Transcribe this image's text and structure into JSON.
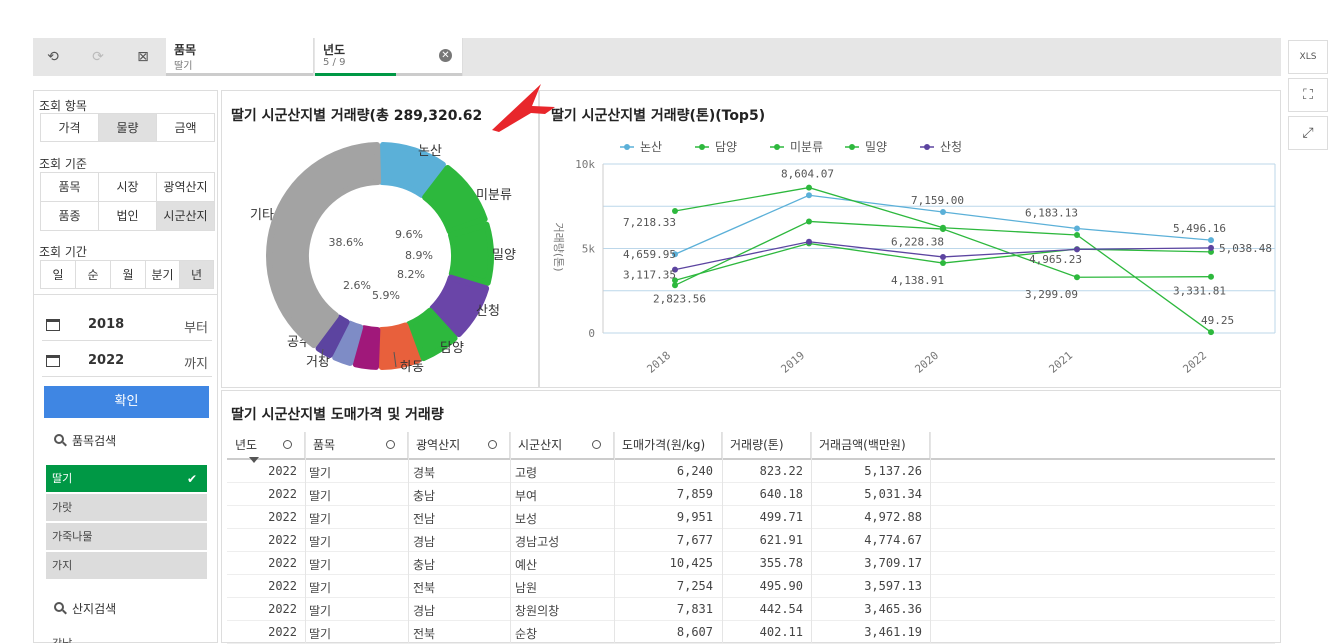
{
  "selections": [
    {
      "field": "품목",
      "value": "딸기",
      "fill": 1.0,
      "active": false
    },
    {
      "field": "년도",
      "value": "5 / 9",
      "fill": 0.55,
      "active": true
    }
  ],
  "right_toolbar": {
    "export_label": "XLS"
  },
  "left": {
    "query_item_label": "조회 항목",
    "query_items": [
      "가격",
      "물량",
      "금액"
    ],
    "query_item_selected": 1,
    "query_basis_label": "조회 기준",
    "query_basis": [
      "품목",
      "시장",
      "광역산지",
      "품종",
      "법인",
      "시군산지"
    ],
    "query_basis_selected": 5,
    "query_period_label": "조회 기간",
    "query_period": [
      "일",
      "순",
      "월",
      "분기",
      "년"
    ],
    "query_period_selected": 4,
    "date_from": "2018",
    "date_from_suffix": "부터",
    "date_to": "2022",
    "date_to_suffix": "까지",
    "confirm_label": "확인",
    "item_search_label": "품목검색",
    "items": [
      "딸기",
      "가랏",
      "가죽나물",
      "가지"
    ],
    "origin_search_label": "산지검색",
    "origin_partial": "강남"
  },
  "donut": {
    "title": "딸기 시군산지별 거래량(총 289,320.62",
    "chart_data": {
      "type": "pie",
      "slices": [
        {
          "label": "논산",
          "pct": 9.6,
          "pct_label": "",
          "color": "#5bb0d8"
        },
        {
          "label": "미분류",
          "pct": 9.6,
          "pct_label": "9.6%",
          "color": "#2db83d"
        },
        {
          "label": "밀양",
          "pct": 8.9,
          "pct_label": "8.9%",
          "color": "#2db83d"
        },
        {
          "label": "산청",
          "pct": 8.2,
          "pct_label": "8.2%",
          "color": "#6a45a8"
        },
        {
          "label": "담양",
          "pct": 5.9,
          "pct_label": "5.9%",
          "color": "#2db83d"
        },
        {
          "label": "하동",
          "pct": 5.9,
          "pct_label": "",
          "color": "#e8603c"
        },
        {
          "label": "",
          "pct": 3.6,
          "pct_label": "",
          "color": "#a0187a"
        },
        {
          "label": "거창",
          "pct": 3.0,
          "pct_label": "",
          "color": "#7e8cc6"
        },
        {
          "label": "공주",
          "pct": 2.6,
          "pct_label": "2.6%",
          "color": "#5c44a0"
        },
        {
          "label": "기타",
          "pct": 38.6,
          "pct_label": "38.6%",
          "color": "#a3a3a3"
        }
      ]
    }
  },
  "line": {
    "title": "딸기 시군산지별 거래량(톤)(Top5)",
    "chart_data": {
      "type": "line",
      "x": [
        "2018",
        "2019",
        "2020",
        "2021",
        "2022"
      ],
      "ylabel": "거래량(톤)",
      "ylim": [
        0,
        10000
      ],
      "y_ticks": [
        "0",
        "5k",
        "10k"
      ],
      "legend_position": "top-left",
      "grid": true,
      "series": [
        {
          "name": "논산",
          "color": "#5bb0d8",
          "values": [
            4659.95,
            8150,
            7159.0,
            6183.13,
            5496.16
          ],
          "labels": [
            "4,659.95",
            "",
            "7,159.00",
            "6,183.13",
            "5,496.16"
          ]
        },
        {
          "name": "담양",
          "color": "#2db83d",
          "values": [
            7218.33,
            8604.07,
            6228.38,
            5800,
            49.25
          ],
          "labels": [
            "7,218.33",
            "8,604.07",
            "6,228.38",
            "",
            "49.25"
          ]
        },
        {
          "name": "미분류",
          "color": "#2db83d",
          "values": [
            2823.56,
            6600,
            6150,
            3299.09,
            3331.81
          ],
          "labels": [
            "2,823.56",
            "",
            "",
            "3,299.09",
            "3,331.81"
          ]
        },
        {
          "name": "밀양",
          "color": "#2db83d",
          "values": [
            3117.35,
            5300,
            4138.91,
            4965.23,
            4800
          ],
          "labels": [
            "3,117.35",
            "",
            "4,138.91",
            "4,965.23",
            ""
          ]
        },
        {
          "name": "산청",
          "color": "#5c44a0",
          "values": [
            3750,
            5400,
            4500,
            4950,
            5038.48
          ],
          "labels": [
            "",
            "",
            "",
            "",
            "5,038.48"
          ]
        }
      ]
    }
  },
  "table": {
    "title": "딸기 시군산지별 도매가격 및 거래량",
    "headers": [
      "년도",
      "품목",
      "광역산지",
      "시군산지",
      "도매가격(원/kg)",
      "거래량(톤)",
      "거래금액(백만원)"
    ],
    "rows": [
      [
        "2022",
        "딸기",
        "경북",
        "고령",
        "6,240",
        "823.22",
        "5,137.26"
      ],
      [
        "2022",
        "딸기",
        "충남",
        "부여",
        "7,859",
        "640.18",
        "5,031.34"
      ],
      [
        "2022",
        "딸기",
        "전남",
        "보성",
        "9,951",
        "499.71",
        "4,972.88"
      ],
      [
        "2022",
        "딸기",
        "경남",
        "경남고성",
        "7,677",
        "621.91",
        "4,774.67"
      ],
      [
        "2022",
        "딸기",
        "충남",
        "예산",
        "10,425",
        "355.78",
        "3,709.17"
      ],
      [
        "2022",
        "딸기",
        "전북",
        "남원",
        "7,254",
        "495.90",
        "3,597.13"
      ],
      [
        "2022",
        "딸기",
        "경남",
        "창원의창",
        "7,831",
        "442.54",
        "3,465.36"
      ],
      [
        "2022",
        "딸기",
        "전북",
        "순창",
        "8,607",
        "402.11",
        "3,461.19"
      ]
    ]
  },
  "colors": {
    "accent_green": "#009845",
    "confirm_blue": "#3f86e3",
    "arrow_red": "#e8262b"
  }
}
